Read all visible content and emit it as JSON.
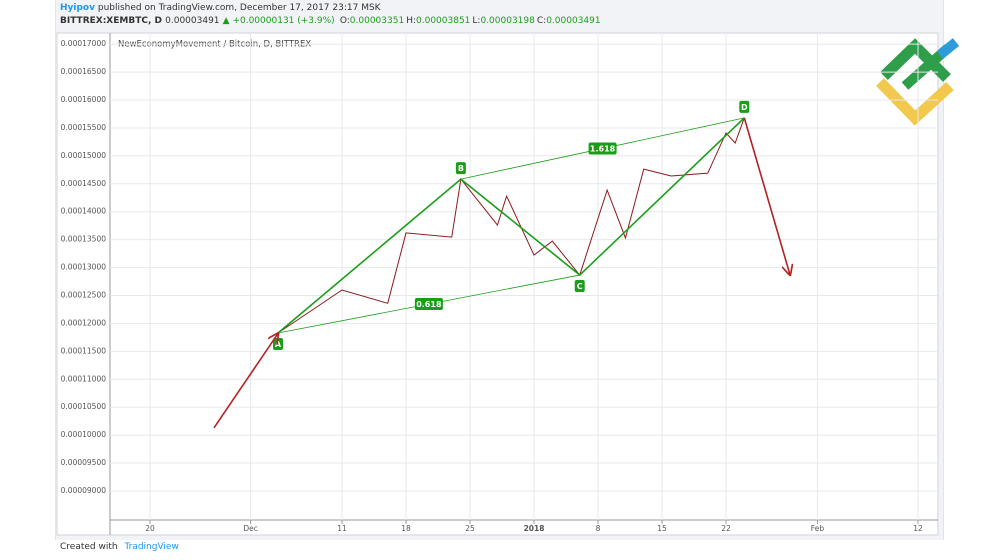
{
  "header": {
    "author": "Hyipov",
    "published": "published on TradingView.com, December 17, 2017 23:17 MSK",
    "symbol": "BITTREX:XEMBTC, D",
    "last": "0.00003491",
    "change": "▲ +0.00000131 (+3.9%)",
    "ohlc": [
      {
        "label": "O:",
        "value": "0.00003351"
      },
      {
        "label": "H:",
        "value": "0.00003851"
      },
      {
        "label": "L:",
        "value": "0.00003198"
      },
      {
        "label": "C:",
        "value": "0.00003491"
      }
    ]
  },
  "footer": {
    "text": "Created with",
    "brand": "TradingView"
  },
  "chart_data": {
    "type": "line",
    "title": "NewEconomyMovement / Bitcoin, D, BITTREX",
    "x": [
      "2017-12-04",
      "2017-12-11",
      "2017-12-16",
      "2017-12-18",
      "2017-12-23",
      "2017-12-24",
      "2017-12-28",
      "2017-12-29",
      "2018-01-01",
      "2018-01-03",
      "2018-01-06",
      "2018-01-09",
      "2018-01-11",
      "2018-01-13",
      "2018-01-16",
      "2018-01-20",
      "2018-01-22",
      "2018-01-23",
      "2018-01-24"
    ],
    "series": [
      {
        "name": "XEMBTC",
        "color": "#8b1a1a",
        "values": [
          0.00011828,
          0.00012598,
          0.0001236,
          0.0001362,
          0.00013546,
          0.00014584,
          0.0001376,
          0.0001428,
          0.00013224,
          0.00013474,
          0.00012866,
          0.00014387,
          0.0001353,
          0.00014763,
          0.0001464,
          0.0001469,
          0.0001541,
          0.0001523,
          0.0001568
        ]
      }
    ],
    "pattern": {
      "color": "#1a9e1a",
      "labels": [
        "A",
        "B",
        "C",
        "D"
      ],
      "x": [
        "2017-12-04",
        "2017-12-24",
        "2018-01-06",
        "2018-01-24"
      ],
      "y": [
        0.00011828,
        0.00014584,
        0.00012866,
        0.0001568
      ],
      "ratio_labels": [
        "0.618",
        "1.618"
      ]
    },
    "arrows": {
      "color": "#b22222",
      "items": [
        {
          "x": [
            "2017-11-27",
            "2017-12-04"
          ],
          "y": [
            0.0001013,
            0.0001182
          ]
        },
        {
          "x": [
            "2018-01-24",
            "2018-01-29"
          ],
          "y": [
            0.0001568,
            0.0001287
          ]
        }
      ]
    },
    "xlim": [
      "2017-11-15",
      "2018-02-14"
    ],
    "xticks": [
      {
        "value": "2017-11-20",
        "label": "20"
      },
      {
        "value": "2017-12-01",
        "label": "Dec"
      },
      {
        "value": "2017-12-11",
        "label": "11"
      },
      {
        "value": "2017-12-18",
        "label": "18"
      },
      {
        "value": "2017-12-25",
        "label": "25"
      },
      {
        "value": "2018-01-01",
        "label": "2018"
      },
      {
        "value": "2018-01-08",
        "label": "8"
      },
      {
        "value": "2018-01-15",
        "label": "15"
      },
      {
        "value": "2018-01-22",
        "label": "22"
      },
      {
        "value": "2018-02-01",
        "label": "Feb"
      },
      {
        "value": "2018-02-12",
        "label": "12"
      }
    ],
    "ylim": [
      8.48e-05,
      0.000172
    ],
    "yticks": [
      {
        "value": 9e-05,
        "label": "0.00009000"
      },
      {
        "value": 9.5e-05,
        "label": "0.00009500"
      },
      {
        "value": 0.0001,
        "label": "0.00010000"
      },
      {
        "value": 0.000105,
        "label": "0.00010500"
      },
      {
        "value": 0.00011,
        "label": "0.00011000"
      },
      {
        "value": 0.000115,
        "label": "0.00011500"
      },
      {
        "value": 0.00012,
        "label": "0.00012000"
      },
      {
        "value": 0.000125,
        "label": "0.00012500"
      },
      {
        "value": 0.00013,
        "label": "0.00013000"
      },
      {
        "value": 0.000135,
        "label": "0.00013500"
      },
      {
        "value": 0.00014,
        "label": "0.00014000"
      },
      {
        "value": 0.000145,
        "label": "0.00014500"
      },
      {
        "value": 0.00015,
        "label": "0.00015000"
      },
      {
        "value": 0.000155,
        "label": "0.00015500"
      },
      {
        "value": 0.00016,
        "label": "0.00016000"
      },
      {
        "value": 0.000165,
        "label": "0.00016500"
      },
      {
        "value": 0.00017,
        "label": "0.00017000"
      }
    ],
    "grid": true
  }
}
